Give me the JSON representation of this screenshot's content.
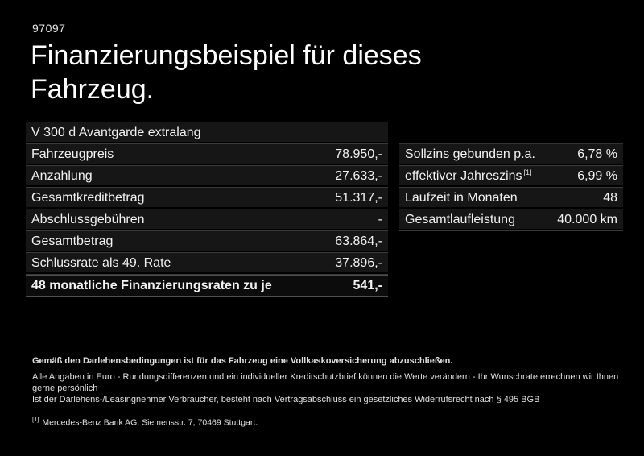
{
  "page": {
    "ref_number": "97097",
    "title": "Finanzierungsbeispiel für dieses Fahrzeug."
  },
  "left_table": {
    "header": "V 300 d Avantgarde extralang",
    "rows": [
      {
        "label": "Fahrzeugpreis",
        "value": "78.950,-"
      },
      {
        "label": "Anzahlung",
        "value": "27.633,-"
      },
      {
        "label": "Gesamtkreditbetrag",
        "value": "51.317,-"
      },
      {
        "label": "Abschlussgebühren",
        "value": "-"
      },
      {
        "label": "Gesamtbetrag",
        "value": "63.864,-"
      },
      {
        "label": "Schlussrate als 49. Rate",
        "value": "37.896,-"
      }
    ],
    "total_row": {
      "label": "48 monatliche Finanzierungsraten zu je",
      "value": "541,-"
    }
  },
  "right_table": {
    "rows": [
      {
        "label": "Sollzins gebunden p.a.",
        "footnote": "",
        "value": "6,78 %"
      },
      {
        "label": "effektiver Jahreszins",
        "footnote": "[1]",
        "value": "6,99 %"
      },
      {
        "label": "Laufzeit in Monaten",
        "footnote": "",
        "value": "48"
      },
      {
        "label": "Gesamtlaufleistung",
        "footnote": "",
        "value": "40.000 km"
      }
    ]
  },
  "footer": {
    "line1": "Gemäß den Darlehensbedingungen ist für das Fahrzeug eine Vollkaskoversicherung abzuschließen.",
    "line2": "Alle Angaben in Euro - Rundungsdifferenzen und ein individueller Kreditschutzbrief können die Werte verändern - Ihr Wunschrate errechnen wir Ihnen gerne persönlich",
    "line3": "Ist der Darlehens-/Leasingnehmer Verbraucher, besteht nach Vertragsabschluss ein gesetzliches Widerrufsrecht nach § 495 BGB",
    "footnote_marker": "[1]",
    "footnote_text": "Mercedes-Benz Bank AG, Siemensstr. 7, 70469 Stuttgart."
  },
  "colors": {
    "background": "#000000",
    "text": "#ffffff",
    "row_background": "#161616",
    "row_separator": "#3a3a3a"
  }
}
